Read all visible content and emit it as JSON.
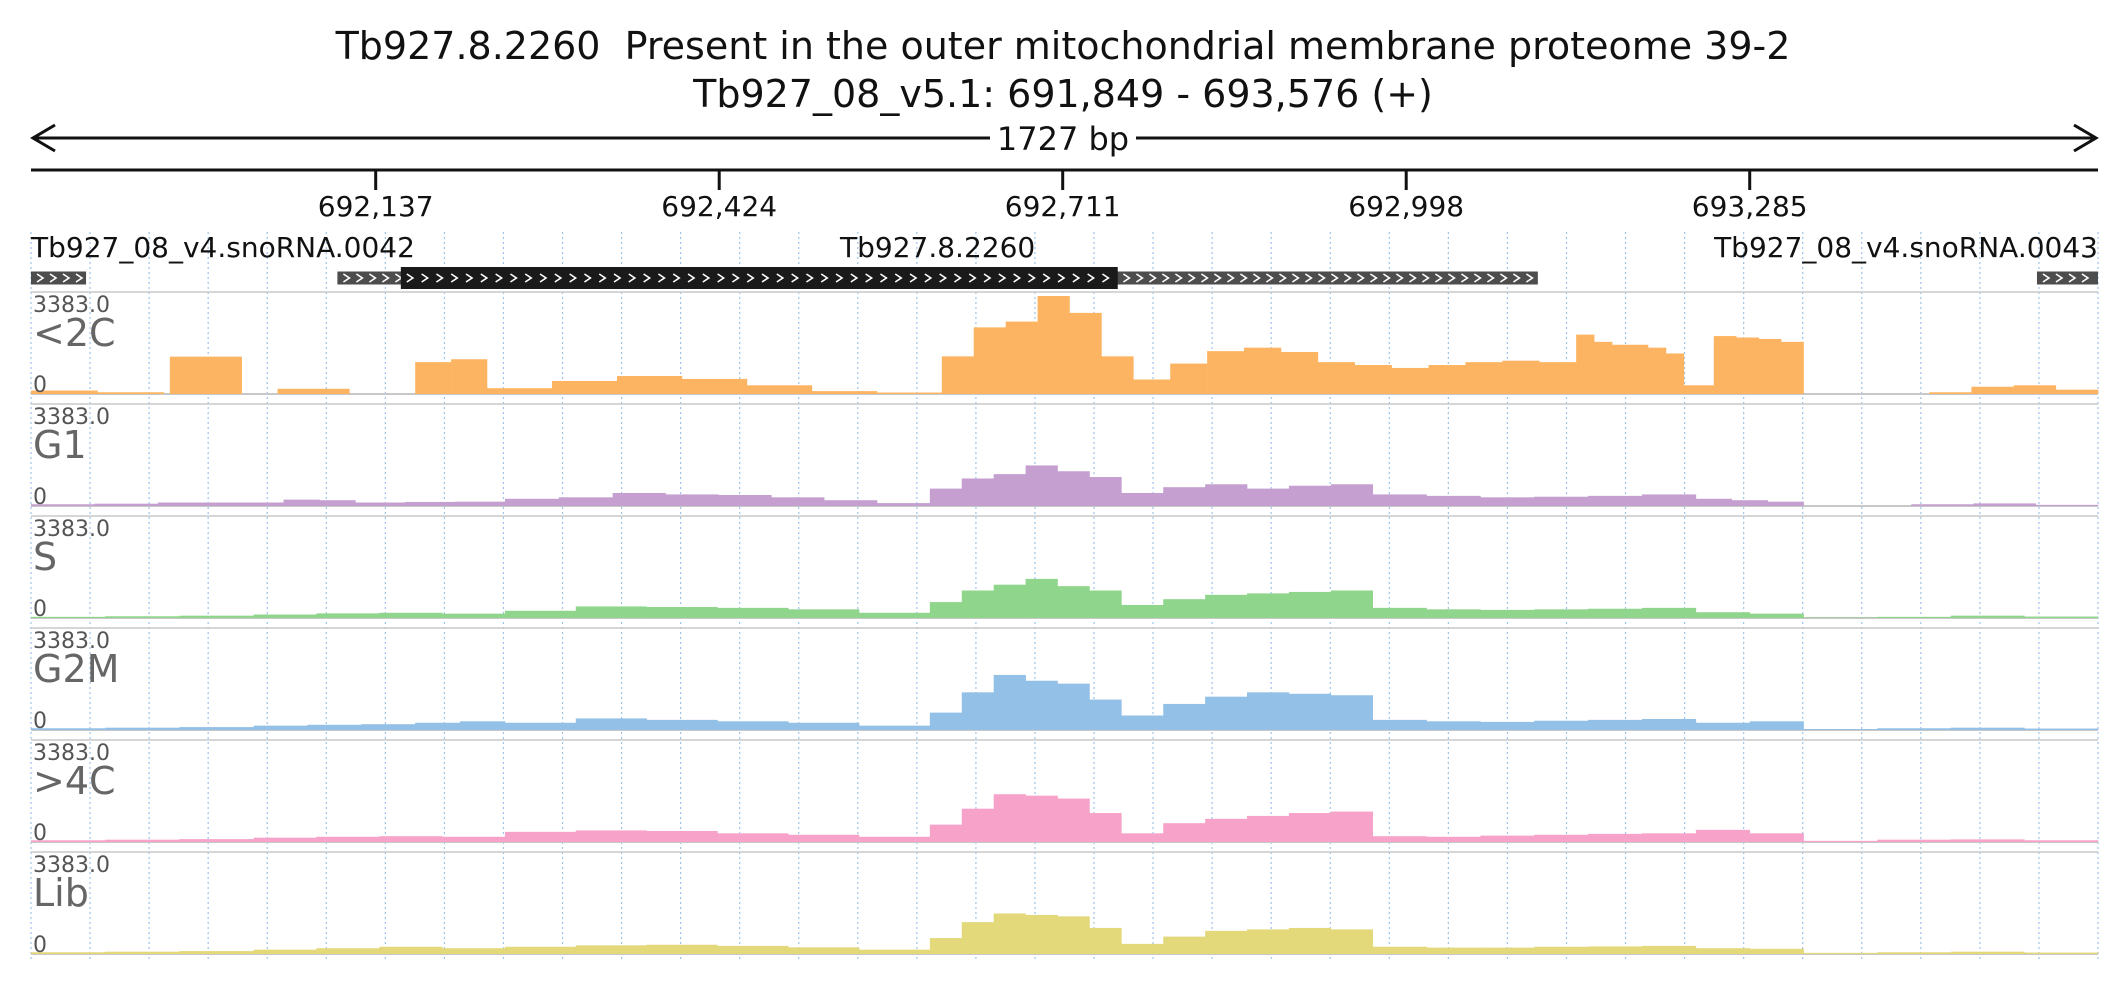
{
  "title_line1": "Tb927.8.2260  Present in the outer mitochondrial membrane proteome 39-2",
  "title_line2": "Tb927_08_v5.1: 691,849 - 693,576 (+)",
  "span_label": "1727 bp",
  "genes": [
    {
      "name": "Tb927_08_v4.snoRNA.0042",
      "start": 691849,
      "end": 691895,
      "strand": "+",
      "style": "grey"
    },
    {
      "name": "Tb927.8.2260",
      "start": 692105,
      "end": 693108,
      "strand": "+",
      "style": "grey"
    },
    {
      "name": "",
      "start": 692158,
      "end": 692757,
      "strand": "+",
      "style": "cds"
    },
    {
      "name": "Tb927_08_v4.snoRNA.0043",
      "start": 693525,
      "end": 693576,
      "strand": "+",
      "style": "grey"
    }
  ],
  "chart_data": {
    "type": "area",
    "x_range": [
      691849,
      693576
    ],
    "x_ticks": [
      692137,
      692424,
      692711,
      692998,
      693285
    ],
    "x_tick_labels": [
      "692,137",
      "692,424",
      "692,711",
      "692,998",
      "693,285"
    ],
    "y_range": [
      0,
      3383.0
    ],
    "y_max_label": "3383.0",
    "y_min_label": "0",
    "grid": "vertical dotted",
    "series": [
      {
        "name": "<2C",
        "color": "#fdb462",
        "segments": [
          {
            "from": 691849,
            "to": 691960,
            "values": [
              120,
              60
            ]
          },
          {
            "from": 691960,
            "to": 691965,
            "values": [
              0
            ]
          },
          {
            "from": 691965,
            "to": 692025,
            "values": [
              1290,
              1290
            ]
          },
          {
            "from": 692025,
            "to": 692055,
            "values": [
              0
            ]
          },
          {
            "from": 692055,
            "to": 692115,
            "values": [
              180,
              180
            ]
          },
          {
            "from": 692115,
            "to": 692170,
            "values": [
              0
            ]
          },
          {
            "from": 692170,
            "to": 692230,
            "values": [
              1100,
              1200
            ]
          },
          {
            "from": 692230,
            "to": 692610,
            "values": [
              200,
              450,
              620,
              520,
              300,
              100,
              50
            ]
          },
          {
            "from": 692610,
            "to": 692770,
            "values": [
              1300,
              2300,
              2500,
              3383,
              2800,
              1300
            ]
          },
          {
            "from": 692770,
            "to": 693140,
            "values": [
              500,
              1050,
              1480,
              1600,
              1450,
              1100,
              1000,
              900,
              1000,
              1100,
              1150,
              1100
            ]
          },
          {
            "from": 693140,
            "to": 693230,
            "values": [
              2050,
              1800,
              1700,
              1700,
              1600,
              1400
            ]
          },
          {
            "from": 693230,
            "to": 693255,
            "values": [
              300
            ]
          },
          {
            "from": 693255,
            "to": 693330,
            "values": [
              2000,
              1950,
              1900,
              1800
            ]
          },
          {
            "from": 693330,
            "to": 693435,
            "values": [
              0
            ]
          },
          {
            "from": 693435,
            "to": 693576,
            "values": [
              60,
              250,
              300,
              150
            ]
          }
        ]
      },
      {
        "name": "G1",
        "color": "#c59fd0",
        "segments": [
          {
            "from": 691849,
            "to": 691955,
            "values": [
              60,
              80
            ]
          },
          {
            "from": 691955,
            "to": 692060,
            "values": [
              120,
              120
            ]
          },
          {
            "from": 692060,
            "to": 692120,
            "values": [
              220,
              200
            ]
          },
          {
            "from": 692120,
            "to": 692245,
            "values": [
              120,
              140,
              150
            ]
          },
          {
            "from": 692245,
            "to": 692335,
            "values": [
              250,
              300
            ]
          },
          {
            "from": 692335,
            "to": 692600,
            "values": [
              450,
              400,
              380,
              300,
              200,
              100
            ]
          },
          {
            "from": 692600,
            "to": 692760,
            "values": [
              600,
              950,
              1100,
              1400,
              1200,
              1000
            ]
          },
          {
            "from": 692760,
            "to": 692970,
            "values": [
              450,
              650,
              750,
              600,
              700,
              750
            ]
          },
          {
            "from": 692970,
            "to": 693240,
            "values": [
              400,
              350,
              300,
              320,
              350,
              400
            ]
          },
          {
            "from": 693240,
            "to": 693330,
            "values": [
              250,
              200,
              150
            ]
          },
          {
            "from": 693330,
            "to": 693420,
            "values": [
              0
            ]
          },
          {
            "from": 693420,
            "to": 693576,
            "values": [
              60,
              90,
              40
            ]
          }
        ]
      },
      {
        "name": "S",
        "color": "#8fd68c",
        "segments": [
          {
            "from": 691849,
            "to": 692035,
            "values": [
              40,
              60,
              80
            ]
          },
          {
            "from": 692035,
            "to": 692245,
            "values": [
              120,
              160,
              180,
              150
            ]
          },
          {
            "from": 692245,
            "to": 692600,
            "values": [
              250,
              400,
              380,
              350,
              300,
              180
            ]
          },
          {
            "from": 692600,
            "to": 692760,
            "values": [
              550,
              950,
              1150,
              1350,
              1100,
              950
            ]
          },
          {
            "from": 692760,
            "to": 692970,
            "values": [
              450,
              650,
              800,
              850,
              900,
              950
            ]
          },
          {
            "from": 692970,
            "to": 693240,
            "values": [
              350,
              300,
              280,
              300,
              320,
              350
            ]
          },
          {
            "from": 693240,
            "to": 693330,
            "values": [
              200,
              150
            ]
          },
          {
            "from": 693330,
            "to": 693576,
            "values": [
              20,
              40,
              80,
              50
            ]
          }
        ]
      },
      {
        "name": "G2M",
        "color": "#92c0e6",
        "segments": [
          {
            "from": 691849,
            "to": 692035,
            "values": [
              60,
              80,
              100
            ]
          },
          {
            "from": 692035,
            "to": 692170,
            "values": [
              150,
              180,
              200
            ]
          },
          {
            "from": 692170,
            "to": 692245,
            "values": [
              250,
              300
            ]
          },
          {
            "from": 692245,
            "to": 692600,
            "values": [
              250,
              400,
              350,
              300,
              250,
              150
            ]
          },
          {
            "from": 692600,
            "to": 692760,
            "values": [
              600,
              1300,
              1900,
              1700,
              1600,
              1050
            ]
          },
          {
            "from": 692760,
            "to": 692970,
            "values": [
              500,
              900,
              1150,
              1300,
              1250,
              1200
            ]
          },
          {
            "from": 692970,
            "to": 693240,
            "values": [
              350,
              300,
              280,
              320,
              350,
              380
            ]
          },
          {
            "from": 693240,
            "to": 693330,
            "values": [
              250,
              300
            ]
          },
          {
            "from": 693330,
            "to": 693576,
            "values": [
              30,
              60,
              80,
              50
            ]
          }
        ]
      },
      {
        "name": ">4C",
        "color": "#f7a3c9",
        "segments": [
          {
            "from": 691849,
            "to": 692035,
            "values": [
              60,
              80,
              100
            ]
          },
          {
            "from": 692035,
            "to": 692245,
            "values": [
              150,
              180,
              200,
              180
            ]
          },
          {
            "from": 692245,
            "to": 692600,
            "values": [
              350,
              400,
              380,
              300,
              250,
              180
            ]
          },
          {
            "from": 692600,
            "to": 692760,
            "values": [
              600,
              1150,
              1650,
              1600,
              1500,
              1000
            ]
          },
          {
            "from": 692760,
            "to": 692970,
            "values": [
              300,
              650,
              800,
              900,
              1000,
              1050
            ]
          },
          {
            "from": 692970,
            "to": 693240,
            "values": [
              200,
              180,
              220,
              250,
              280,
              300
            ]
          },
          {
            "from": 693240,
            "to": 693330,
            "values": [
              420,
              300
            ]
          },
          {
            "from": 693330,
            "to": 693576,
            "values": [
              40,
              80,
              90,
              60
            ]
          }
        ]
      },
      {
        "name": "Lib",
        "color": "#e3d87a",
        "segments": [
          {
            "from": 691849,
            "to": 692035,
            "values": [
              60,
              80,
              100
            ]
          },
          {
            "from": 692035,
            "to": 692245,
            "values": [
              150,
              200,
              250,
              200
            ]
          },
          {
            "from": 692245,
            "to": 692600,
            "values": [
              250,
              300,
              320,
              280,
              230,
              150
            ]
          },
          {
            "from": 692600,
            "to": 692760,
            "values": [
              550,
              1100,
              1400,
              1350,
              1300,
              900
            ]
          },
          {
            "from": 692760,
            "to": 692970,
            "values": [
              350,
              600,
              800,
              850,
              900,
              850
            ]
          },
          {
            "from": 692970,
            "to": 693240,
            "values": [
              250,
              220,
              220,
              250,
              260,
              280
            ]
          },
          {
            "from": 693240,
            "to": 693330,
            "values": [
              200,
              180
            ]
          },
          {
            "from": 693330,
            "to": 693576,
            "values": [
              40,
              60,
              80,
              50
            ]
          }
        ]
      }
    ]
  }
}
